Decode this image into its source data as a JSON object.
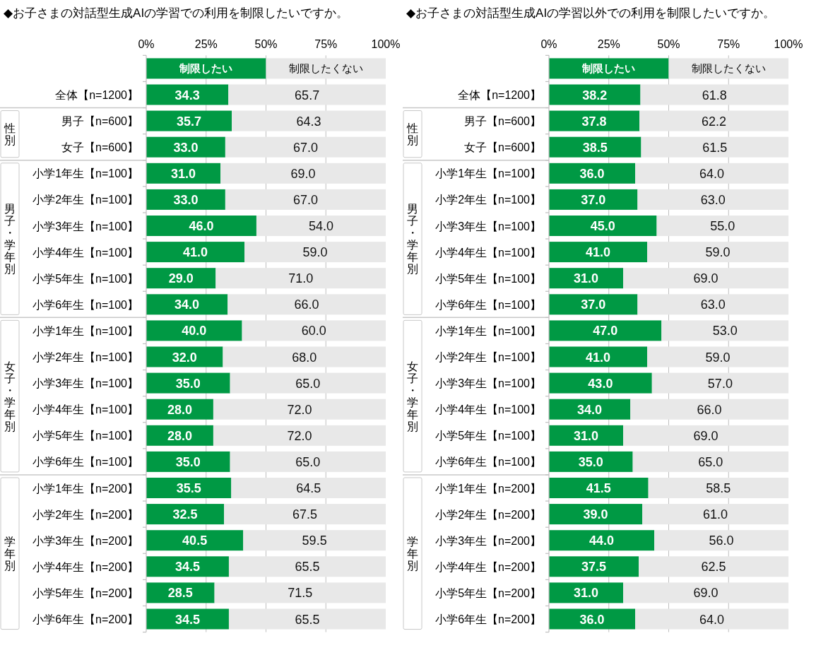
{
  "chart_data": [
    {
      "type": "bar",
      "orientation": "horizontal",
      "stacked": true,
      "title": "◆お子さまの対話型生成AIの学習での利用を制限したいですか。",
      "categories": [
        "全体【n=1200】",
        "男子【n=600】",
        "女子【n=600】",
        "小学1年生【n=100】",
        "小学2年生【n=100】",
        "小学3年生【n=100】",
        "小学4年生【n=100】",
        "小学5年生【n=100】",
        "小学6年生【n=100】",
        "小学1年生【n=100】",
        "小学2年生【n=100】",
        "小学3年生【n=100】",
        "小学4年生【n=100】",
        "小学5年生【n=100】",
        "小学6年生【n=100】",
        "小学1年生【n=200】",
        "小学2年生【n=200】",
        "小学3年生【n=200】",
        "小学4年生【n=200】",
        "小学5年生【n=200】",
        "小学6年生【n=200】"
      ],
      "series": [
        {
          "name": "制限したい",
          "color": "#009944",
          "values": [
            34.3,
            35.7,
            33.0,
            31.0,
            33.0,
            46.0,
            41.0,
            29.0,
            34.0,
            40.0,
            32.0,
            35.0,
            28.0,
            28.0,
            35.0,
            35.5,
            32.5,
            40.5,
            34.5,
            28.5,
            34.5
          ],
          "value_labels": [
            "34.3",
            "35.7",
            "33.0",
            "31.0",
            "33.0",
            "46.0",
            "41.0",
            "29.0",
            "34.0",
            "40.0",
            "32.0",
            "35.0",
            "28.0",
            "28.0",
            "35.0",
            "35.5",
            "32.5",
            "40.5",
            "34.5",
            "28.5",
            "34.5"
          ]
        },
        {
          "name": "制限したくない",
          "color": "#e8e8e8",
          "values": [
            65.7,
            64.3,
            67.0,
            69.0,
            67.0,
            54.0,
            59.0,
            71.0,
            66.0,
            60.0,
            68.0,
            65.0,
            72.0,
            72.0,
            65.0,
            64.5,
            67.5,
            59.5,
            65.5,
            71.5,
            65.5
          ],
          "value_labels": [
            "65.7",
            "64.3",
            "67.0",
            "69.0",
            "67.0",
            "54.0",
            "59.0",
            "71.0",
            "66.0",
            "60.0",
            "68.0",
            "65.0",
            "72.0",
            "72.0",
            "65.0",
            "64.5",
            "67.5",
            "59.5",
            "65.5",
            "71.5",
            "65.5"
          ]
        }
      ],
      "xlim": [
        0,
        100
      ],
      "xticks": [
        {
          "value": 0,
          "label": "0%"
        },
        {
          "value": 25,
          "label": "25%"
        },
        {
          "value": 50,
          "label": "50%"
        },
        {
          "value": 75,
          "label": "75%"
        },
        {
          "value": 100,
          "label": "100%"
        }
      ],
      "grid": "x",
      "legend": "top",
      "annotations": [
        "性別",
        "男子・学年別",
        "女子・学年別",
        "学年別"
      ]
    },
    {
      "type": "bar",
      "orientation": "horizontal",
      "stacked": true,
      "title": "◆お子さまの対話型生成AIの学習以外での利用を制限したいですか。",
      "categories": [
        "全体【n=1200】",
        "男子【n=600】",
        "女子【n=600】",
        "小学1年生【n=100】",
        "小学2年生【n=100】",
        "小学3年生【n=100】",
        "小学4年生【n=100】",
        "小学5年生【n=100】",
        "小学6年生【n=100】",
        "小学1年生【n=100】",
        "小学2年生【n=100】",
        "小学3年生【n=100】",
        "小学4年生【n=100】",
        "小学5年生【n=100】",
        "小学6年生【n=100】",
        "小学1年生【n=200】",
        "小学2年生【n=200】",
        "小学3年生【n=200】",
        "小学4年生【n=200】",
        "小学5年生【n=200】",
        "小学6年生【n=200】"
      ],
      "series": [
        {
          "name": "制限したい",
          "color": "#009944",
          "values": [
            38.2,
            37.8,
            38.5,
            36.0,
            37.0,
            45.0,
            41.0,
            31.0,
            37.0,
            47.0,
            41.0,
            43.0,
            34.0,
            31.0,
            35.0,
            41.5,
            39.0,
            44.0,
            37.5,
            31.0,
            36.0
          ],
          "value_labels": [
            "38.2",
            "37.8",
            "38.5",
            "36.0",
            "37.0",
            "45.0",
            "41.0",
            "31.0",
            "37.0",
            "47.0",
            "41.0",
            "43.0",
            "34.0",
            "31.0",
            "35.0",
            "41.5",
            "39.0",
            "44.0",
            "37.5",
            "31.0",
            "36.0"
          ]
        },
        {
          "name": "制限したくない",
          "color": "#e8e8e8",
          "values": [
            61.8,
            62.2,
            61.5,
            64.0,
            63.0,
            55.0,
            59.0,
            69.0,
            63.0,
            53.0,
            59.0,
            57.0,
            66.0,
            69.0,
            65.0,
            58.5,
            61.0,
            56.0,
            62.5,
            69.0,
            64.0
          ],
          "value_labels": [
            "61.8",
            "62.2",
            "61.5",
            "64.0",
            "63.0",
            "55.0",
            "59.0",
            "69.0",
            "63.0",
            "53.0",
            "59.0",
            "57.0",
            "66.0",
            "69.0",
            "65.0",
            "58.5",
            "61.0",
            "56.0",
            "62.5",
            "69.0",
            "64.0"
          ]
        }
      ],
      "xlim": [
        0,
        100
      ],
      "xticks": [
        {
          "value": 0,
          "label": "0%"
        },
        {
          "value": 25,
          "label": "25%"
        },
        {
          "value": 50,
          "label": "50%"
        },
        {
          "value": 75,
          "label": "75%"
        },
        {
          "value": 100,
          "label": "100%"
        }
      ],
      "grid": "x",
      "legend": "top",
      "annotations": [
        "性別",
        "男子・学年別",
        "女子・学年別",
        "学年別"
      ]
    }
  ]
}
